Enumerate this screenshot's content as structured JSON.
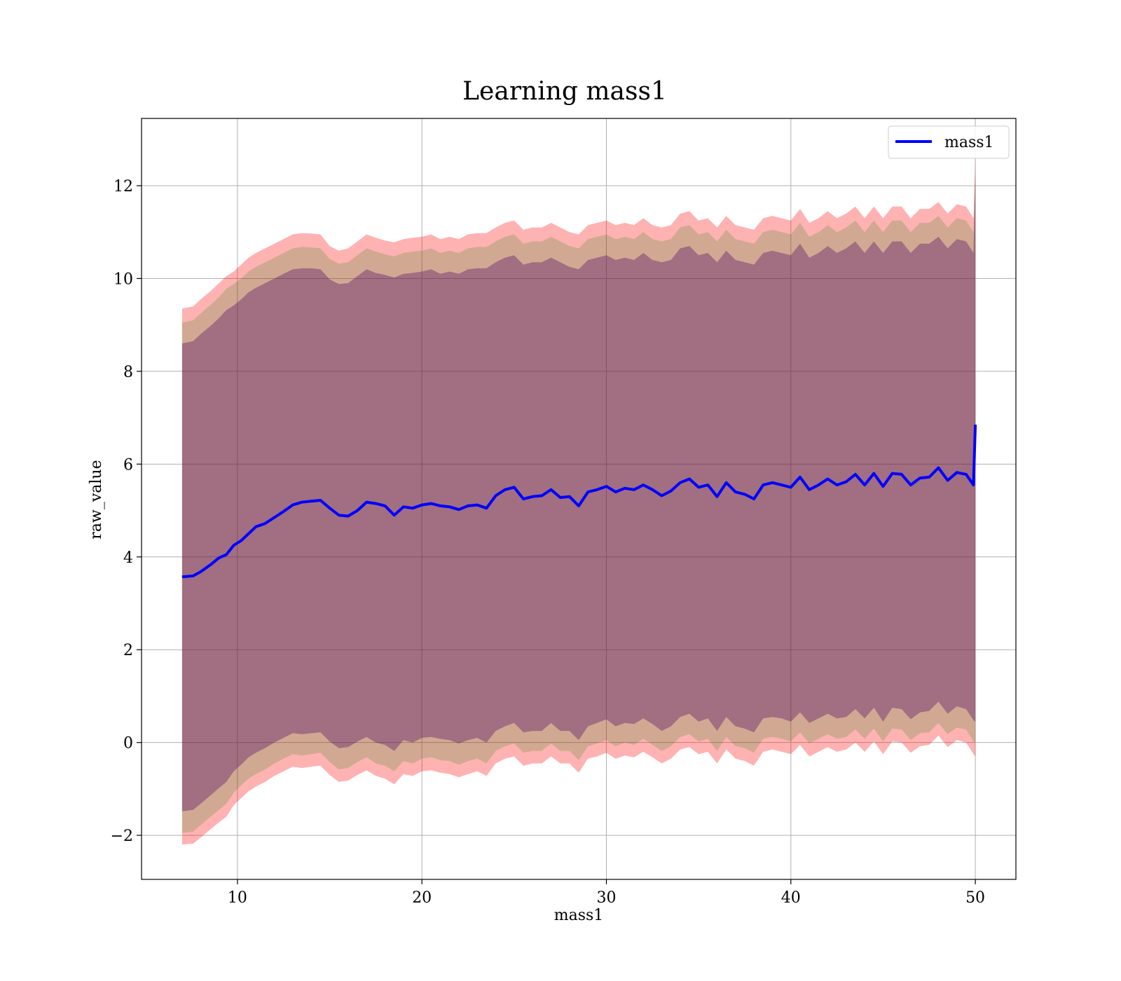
{
  "chart_data": {
    "type": "line",
    "title": "Learning mass1",
    "xlabel": "mass1",
    "ylabel": "raw_value",
    "xlim": [
      4.8,
      52.2
    ],
    "ylim": [
      -2.95,
      13.45
    ],
    "xticks": [
      10,
      20,
      30,
      40,
      50
    ],
    "yticks": [
      -2,
      0,
      2,
      4,
      6,
      8,
      10,
      12
    ],
    "ytick_labels": [
      "−2",
      "0",
      "2",
      "4",
      "6",
      "8",
      "10",
      "12"
    ],
    "grid": true,
    "legend_position": "upper right",
    "series": [
      {
        "name": "mass1",
        "color": "#0000ff",
        "x": [
          7.0,
          7.6,
          8.0,
          8.6,
          9.0,
          9.4,
          9.8,
          10.2,
          10.6,
          11.0,
          11.5,
          12.0,
          12.5,
          13.0,
          13.5,
          14.0,
          14.5,
          15.0,
          15.5,
          16.0,
          16.5,
          17.0,
          17.5,
          18.0,
          18.5,
          19.0,
          19.5,
          20.0,
          20.5,
          21.0,
          21.5,
          22.0,
          22.5,
          23.0,
          23.5,
          24.0,
          24.5,
          25.0,
          25.5,
          26.0,
          26.5,
          27.0,
          27.5,
          28.0,
          28.5,
          29.0,
          29.5,
          30.0,
          30.5,
          31.0,
          31.5,
          32.0,
          32.5,
          33.0,
          33.5,
          34.0,
          34.5,
          35.0,
          35.5,
          36.0,
          36.5,
          37.0,
          37.5,
          38.0,
          38.5,
          39.0,
          39.5,
          40.0,
          40.5,
          41.0,
          41.5,
          42.0,
          42.5,
          43.0,
          43.5,
          44.0,
          44.5,
          45.0,
          45.5,
          46.0,
          46.5,
          47.0,
          47.5,
          48.0,
          48.5,
          49.0,
          49.5,
          49.9,
          50.0
        ],
        "y": [
          3.57,
          3.59,
          3.68,
          3.85,
          3.98,
          4.05,
          4.25,
          4.35,
          4.5,
          4.65,
          4.72,
          4.85,
          4.98,
          5.12,
          5.18,
          5.2,
          5.22,
          5.05,
          4.9,
          4.88,
          5.0,
          5.18,
          5.15,
          5.1,
          4.9,
          5.08,
          5.05,
          5.12,
          5.15,
          5.1,
          5.08,
          5.02,
          5.1,
          5.12,
          5.05,
          5.32,
          5.45,
          5.5,
          5.25,
          5.3,
          5.32,
          5.45,
          5.28,
          5.3,
          5.1,
          5.4,
          5.45,
          5.52,
          5.4,
          5.48,
          5.45,
          5.55,
          5.45,
          5.32,
          5.42,
          5.6,
          5.68,
          5.5,
          5.55,
          5.3,
          5.6,
          5.4,
          5.35,
          5.25,
          5.55,
          5.6,
          5.55,
          5.5,
          5.72,
          5.45,
          5.55,
          5.68,
          5.55,
          5.62,
          5.78,
          5.55,
          5.8,
          5.52,
          5.8,
          5.78,
          5.55,
          5.7,
          5.72,
          5.92,
          5.65,
          5.82,
          5.78,
          5.55,
          6.85
        ],
        "bands": [
          {
            "color": "#ff0000",
            "opacity": 0.3,
            "upper": [
              9.35,
              9.4,
              9.55,
              9.75,
              9.9,
              10.05,
              10.15,
              10.3,
              10.45,
              10.55,
              10.65,
              10.75,
              10.85,
              10.95,
              10.98,
              10.97,
              10.95,
              10.7,
              10.6,
              10.65,
              10.8,
              10.95,
              10.88,
              10.82,
              10.78,
              10.85,
              10.88,
              10.9,
              10.95,
              10.85,
              10.9,
              10.85,
              10.95,
              10.98,
              10.98,
              11.1,
              11.2,
              11.25,
              11.05,
              11.1,
              11.1,
              11.2,
              11.1,
              11.0,
              10.95,
              11.15,
              11.2,
              11.25,
              11.15,
              11.2,
              11.15,
              11.3,
              11.15,
              11.1,
              11.15,
              11.4,
              11.45,
              11.25,
              11.3,
              11.1,
              11.35,
              11.15,
              11.1,
              11.05,
              11.3,
              11.35,
              11.3,
              11.25,
              11.5,
              11.2,
              11.3,
              11.45,
              11.3,
              11.4,
              11.55,
              11.3,
              11.55,
              11.3,
              11.55,
              11.55,
              11.3,
              11.5,
              11.5,
              11.65,
              11.4,
              11.6,
              11.55,
              11.3,
              12.6
            ],
            "lower": [
              -2.2,
              -2.18,
              -2.05,
              -1.85,
              -1.72,
              -1.6,
              -1.35,
              -1.2,
              -1.05,
              -0.95,
              -0.85,
              -0.72,
              -0.62,
              -0.52,
              -0.55,
              -0.52,
              -0.5,
              -0.7,
              -0.85,
              -0.82,
              -0.7,
              -0.6,
              -0.72,
              -0.78,
              -0.9,
              -0.68,
              -0.72,
              -0.62,
              -0.6,
              -0.65,
              -0.68,
              -0.75,
              -0.68,
              -0.62,
              -0.72,
              -0.45,
              -0.35,
              -0.3,
              -0.5,
              -0.45,
              -0.45,
              -0.3,
              -0.45,
              -0.45,
              -0.65,
              -0.35,
              -0.3,
              -0.22,
              -0.35,
              -0.28,
              -0.32,
              -0.2,
              -0.32,
              -0.45,
              -0.35,
              -0.15,
              -0.1,
              -0.25,
              -0.2,
              -0.45,
              -0.15,
              -0.35,
              -0.4,
              -0.5,
              -0.2,
              -0.15,
              -0.2,
              -0.25,
              -0.05,
              -0.3,
              -0.2,
              -0.1,
              -0.2,
              -0.15,
              0.0,
              -0.2,
              0.02,
              -0.25,
              0.02,
              0.0,
              -0.22,
              -0.08,
              -0.05,
              0.15,
              -0.1,
              0.05,
              0.0,
              -0.25,
              -0.3
            ]
          },
          {
            "color": "#008000",
            "opacity": 0.18,
            "upper": [
              9.05,
              9.1,
              9.25,
              9.45,
              9.6,
              9.78,
              9.88,
              10.0,
              10.15,
              10.25,
              10.35,
              10.45,
              10.55,
              10.65,
              10.68,
              10.67,
              10.65,
              10.42,
              10.32,
              10.35,
              10.5,
              10.65,
              10.58,
              10.52,
              10.48,
              10.55,
              10.58,
              10.6,
              10.65,
              10.55,
              10.6,
              10.55,
              10.65,
              10.68,
              10.68,
              10.8,
              10.9,
              10.95,
              10.75,
              10.8,
              10.8,
              10.9,
              10.8,
              10.7,
              10.65,
              10.85,
              10.9,
              10.95,
              10.85,
              10.9,
              10.85,
              11.0,
              10.85,
              10.8,
              10.85,
              11.1,
              11.15,
              10.95,
              11.0,
              10.8,
              11.05,
              10.85,
              10.8,
              10.75,
              11.0,
              11.05,
              11.0,
              10.95,
              11.2,
              10.9,
              11.0,
              11.15,
              11.0,
              11.1,
              11.25,
              11.0,
              11.25,
              11.0,
              11.25,
              11.25,
              11.0,
              11.2,
              11.2,
              11.35,
              11.1,
              11.3,
              11.25,
              11.0,
              12.4
            ],
            "lower": [
              -1.95,
              -1.92,
              -1.78,
              -1.58,
              -1.45,
              -1.32,
              -1.08,
              -0.92,
              -0.78,
              -0.68,
              -0.58,
              -0.45,
              -0.35,
              -0.25,
              -0.28,
              -0.25,
              -0.22,
              -0.42,
              -0.58,
              -0.55,
              -0.42,
              -0.32,
              -0.45,
              -0.5,
              -0.62,
              -0.4,
              -0.45,
              -0.35,
              -0.32,
              -0.38,
              -0.4,
              -0.48,
              -0.4,
              -0.35,
              -0.45,
              -0.18,
              -0.08,
              -0.02,
              -0.22,
              -0.18,
              -0.18,
              -0.02,
              -0.18,
              -0.18,
              -0.38,
              -0.08,
              -0.02,
              0.05,
              -0.08,
              0.0,
              -0.05,
              0.08,
              -0.05,
              -0.18,
              -0.08,
              0.12,
              0.18,
              0.02,
              0.08,
              -0.18,
              0.12,
              -0.08,
              -0.12,
              -0.22,
              0.08,
              0.12,
              0.08,
              0.02,
              0.22,
              -0.02,
              0.08,
              0.18,
              0.08,
              0.12,
              0.28,
              0.08,
              0.3,
              0.02,
              0.3,
              0.28,
              0.05,
              0.2,
              0.22,
              0.42,
              0.18,
              0.32,
              0.28,
              0.02,
              0.0
            ]
          },
          {
            "color": "#4b0060",
            "opacity": 0.35,
            "upper": [
              8.6,
              8.65,
              8.8,
              9.0,
              9.15,
              9.32,
              9.42,
              9.55,
              9.7,
              9.8,
              9.9,
              10.0,
              10.1,
              10.2,
              10.22,
              10.22,
              10.2,
              9.98,
              9.88,
              9.9,
              10.05,
              10.2,
              10.12,
              10.08,
              10.02,
              10.1,
              10.12,
              10.15,
              10.2,
              10.1,
              10.15,
              10.1,
              10.2,
              10.22,
              10.22,
              10.35,
              10.45,
              10.5,
              10.3,
              10.35,
              10.35,
              10.45,
              10.35,
              10.25,
              10.2,
              10.4,
              10.45,
              10.5,
              10.4,
              10.45,
              10.4,
              10.55,
              10.4,
              10.35,
              10.4,
              10.65,
              10.7,
              10.5,
              10.55,
              10.35,
              10.6,
              10.4,
              10.35,
              10.3,
              10.55,
              10.6,
              10.55,
              10.5,
              10.75,
              10.45,
              10.55,
              10.7,
              10.55,
              10.65,
              10.8,
              10.55,
              10.8,
              10.55,
              10.8,
              10.8,
              10.55,
              10.75,
              10.75,
              10.9,
              10.65,
              10.85,
              10.8,
              10.55,
              12.2
            ],
            "lower": [
              -1.48,
              -1.45,
              -1.32,
              -1.12,
              -0.98,
              -0.85,
              -0.62,
              -0.48,
              -0.32,
              -0.22,
              -0.12,
              0.0,
              0.1,
              0.2,
              0.18,
              0.2,
              0.22,
              0.02,
              -0.12,
              -0.1,
              0.02,
              0.12,
              0.0,
              -0.05,
              -0.18,
              0.05,
              0.0,
              0.1,
              0.12,
              0.08,
              0.05,
              -0.02,
              0.05,
              0.1,
              0.0,
              0.25,
              0.35,
              0.42,
              0.22,
              0.25,
              0.25,
              0.42,
              0.25,
              0.25,
              0.05,
              0.35,
              0.42,
              0.5,
              0.35,
              0.42,
              0.4,
              0.52,
              0.4,
              0.25,
              0.35,
              0.55,
              0.62,
              0.45,
              0.52,
              0.25,
              0.55,
              0.35,
              0.3,
              0.22,
              0.52,
              0.55,
              0.52,
              0.45,
              0.65,
              0.42,
              0.52,
              0.62,
              0.52,
              0.55,
              0.72,
              0.52,
              0.75,
              0.45,
              0.75,
              0.72,
              0.5,
              0.65,
              0.68,
              0.88,
              0.62,
              0.78,
              0.72,
              0.48,
              0.45
            ]
          }
        ]
      }
    ]
  }
}
